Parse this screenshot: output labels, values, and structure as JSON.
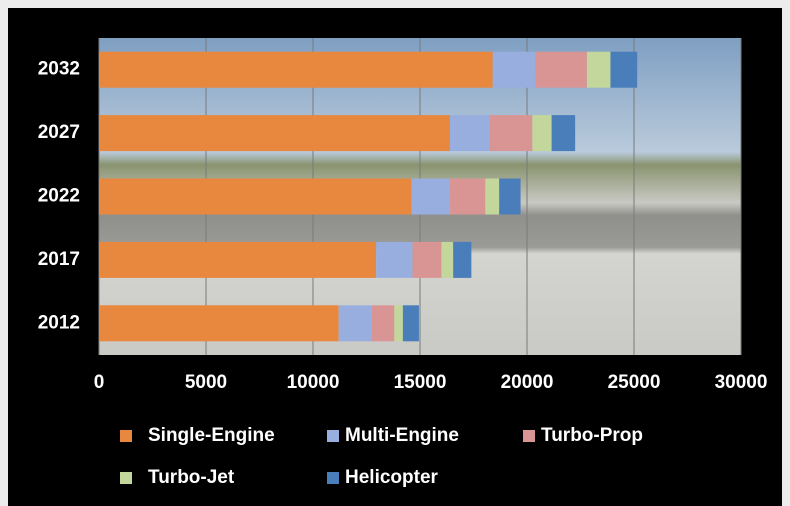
{
  "chart_data": {
    "type": "stacked-bar-horizontal",
    "categories": [
      "2012",
      "2017",
      "2022",
      "2027",
      "2032"
    ],
    "series": [
      {
        "name": "Single-Engine",
        "color": "#e8873e",
        "values": [
          11200,
          12950,
          14600,
          16400,
          18400
        ]
      },
      {
        "name": "Multi-Engine",
        "color": "#98aede",
        "values": [
          1550,
          1700,
          1800,
          1850,
          2000
        ]
      },
      {
        "name": "Turbo-Prop",
        "color": "#d99594",
        "values": [
          1050,
          1350,
          1650,
          2000,
          2400
        ]
      },
      {
        "name": "Turbo-Jet",
        "color": "#c3d69b",
        "values": [
          400,
          550,
          650,
          900,
          1100
        ]
      },
      {
        "name": "Helicopter",
        "color": "#4a7ebb",
        "values": [
          750,
          850,
          1000,
          1100,
          1250
        ]
      }
    ],
    "xlim": [
      0,
      30000
    ],
    "xticks": [
      0,
      5000,
      10000,
      15000,
      20000,
      25000,
      30000
    ],
    "grid": true,
    "legend": "bottom"
  }
}
